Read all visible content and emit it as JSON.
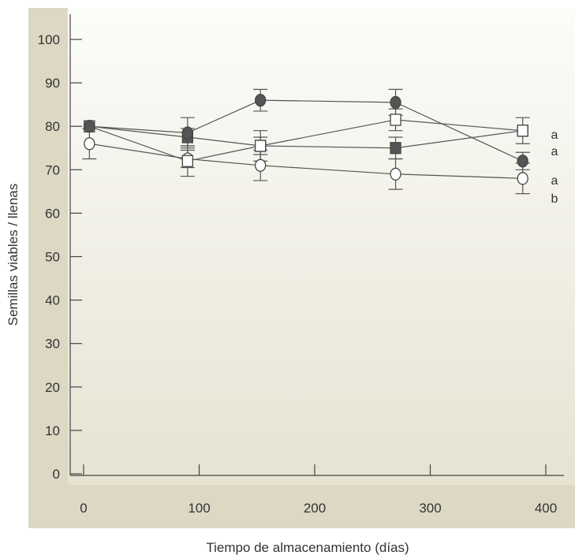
{
  "chart_data": {
    "type": "line",
    "title": "",
    "xlabel": "Tiempo de almacenamiento (días)",
    "ylabel": "Semillas viables / llenas",
    "xlim": [
      -5,
      415
    ],
    "ylim": [
      0,
      100
    ],
    "x_ticks": [
      0,
      100,
      200,
      300,
      400
    ],
    "y_ticks": [
      0,
      10,
      20,
      30,
      40,
      50,
      60,
      70,
      80,
      90,
      100
    ],
    "grid": false,
    "colors": {
      "panel_gradient_top": "#fcfcfa",
      "panel_gradient_bottom": "#e6e3d2",
      "frame": "#ddd8c4",
      "marker_filled": "#555555",
      "marker_open": "#ffffff",
      "line": "#555555"
    },
    "series": [
      {
        "marker": "filled-circle",
        "x": [
          5,
          90,
          153,
          270,
          380
        ],
        "values": [
          80,
          78.5,
          86,
          85.5,
          72
        ],
        "err": [
          0,
          3.5,
          2.5,
          3,
          2
        ],
        "group_letter": "a"
      },
      {
        "marker": "open-square",
        "x": [
          5,
          90,
          153,
          270,
          380
        ],
        "values": [
          80,
          72,
          75.5,
          81.5,
          79
        ],
        "err": [
          0,
          3.5,
          3.5,
          2.5,
          3
        ],
        "group_letter": "a"
      },
      {
        "marker": "filled-square",
        "x": [
          5,
          90,
          153,
          270,
          380
        ],
        "values": [
          80,
          77.5,
          75.5,
          75,
          79
        ],
        "err": [
          0,
          2,
          2,
          2.5,
          0
        ],
        "group_letter": "a"
      },
      {
        "marker": "open-circle",
        "x": [
          5,
          90,
          153,
          270,
          380
        ],
        "values": [
          76,
          72.5,
          71,
          69,
          68
        ],
        "err": [
          3.5,
          2,
          3.5,
          3.5,
          3.5
        ],
        "group_letter": "b"
      }
    ]
  }
}
